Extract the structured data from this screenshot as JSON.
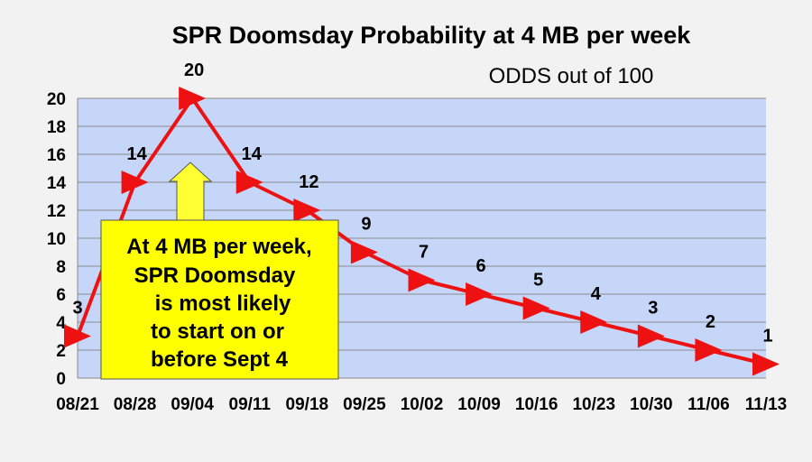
{
  "chart_data": {
    "type": "line",
    "title": "SPR Doomsday Probability at 4 MB per week",
    "subtitle": "ODDS out of 100",
    "categories": [
      "08/21",
      "08/28",
      "09/04",
      "09/11",
      "09/18",
      "09/25",
      "10/02",
      "10/09",
      "10/16",
      "10/23",
      "10/30",
      "11/06",
      "11/13"
    ],
    "series": [
      {
        "values": [
          3,
          14,
          20,
          14,
          12,
          9,
          7,
          6,
          5,
          4,
          3,
          2,
          1
        ]
      }
    ],
    "ylim": [
      0,
      20
    ],
    "yticks": [
      0,
      2,
      4,
      6,
      8,
      10,
      12,
      14,
      16,
      18,
      20
    ],
    "grid": true,
    "colors": {
      "line": "#ee1111",
      "plot_bg": "#c5d6f8",
      "grid": "#8a8a8a",
      "callout_bg": "#ffff00",
      "arrow_bg": "#ffff33"
    },
    "annotation": {
      "lines": [
        "At 4 MB per week,",
        "SPR Doomsday",
        "is most likely",
        "to start on or",
        "before Sept 4"
      ]
    }
  }
}
